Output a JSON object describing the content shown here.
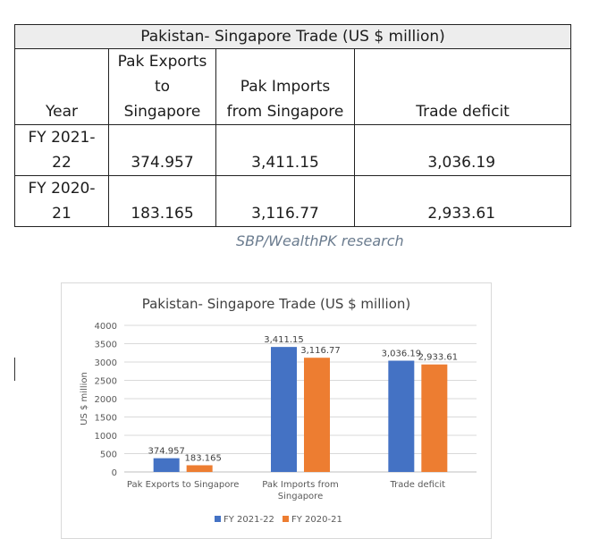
{
  "table": {
    "title": "Pakistan- Singapore Trade (US $ million)",
    "headers": {
      "year": "Year",
      "exports": [
        "Pak Exports",
        "to",
        "Singapore"
      ],
      "imports": [
        "Pak Imports",
        "from Singapore"
      ],
      "deficit": "Trade deficit"
    },
    "rows": [
      {
        "year_lines": [
          "FY 2021-",
          "22"
        ],
        "exports": "374.957",
        "imports": "3,411.15",
        "deficit": "3,036.19"
      },
      {
        "year_lines": [
          "FY 2020-",
          "21"
        ],
        "exports": "183.165",
        "imports": "3,116.77",
        "deficit": "2,933.61"
      }
    ]
  },
  "source_note": "SBP/WealthPK research",
  "chart_data": {
    "type": "bar",
    "title": "Pakistan- Singapore Trade  (US $ million)",
    "ylabel": "US $ million",
    "xlabel": "",
    "ylim": [
      0,
      4000
    ],
    "yticks": [
      0,
      500,
      1000,
      1500,
      2000,
      2500,
      3000,
      3500,
      4000
    ],
    "grid": true,
    "legend_position": "bottom",
    "categories": [
      [
        "Pak Exports to Singapore"
      ],
      [
        "Pak Imports from",
        "Singapore"
      ],
      [
        "Trade deficit"
      ]
    ],
    "series": [
      {
        "name": "FY 2021-22",
        "color": "#4472c4",
        "values": [
          374.957,
          3411.15,
          3036.19
        ],
        "labels": [
          "374.957",
          "3,411.15",
          "3,036.19"
        ]
      },
      {
        "name": "FY 2020-21",
        "color": "#ed7d31",
        "values": [
          183.165,
          3116.77,
          2933.61
        ],
        "labels": [
          "183.165",
          "3,116.77",
          "2,933.61"
        ]
      }
    ]
  }
}
